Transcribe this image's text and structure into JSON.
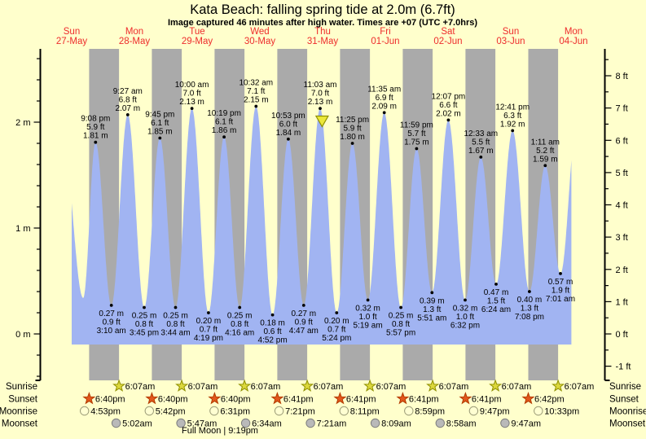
{
  "header": {
    "title": "Kata Beach: falling  spring tide at 2.0m (6.7ft)",
    "subtitle": "Image captured 46 minutes after high water. Times are +07 (UTC +7.0hrs)"
  },
  "days": [
    {
      "name": "Sun",
      "date": "27-May"
    },
    {
      "name": "Mon",
      "date": "28-May"
    },
    {
      "name": "Tue",
      "date": "29-May"
    },
    {
      "name": "Wed",
      "date": "30-May"
    },
    {
      "name": "Thu",
      "date": "31-May"
    },
    {
      "name": "Fri",
      "date": "01-Jun"
    },
    {
      "name": "Sat",
      "date": "02-Jun"
    },
    {
      "name": "Sun",
      "date": "03-Jun"
    },
    {
      "name": "Mon",
      "date": "04-Jun"
    }
  ],
  "chart_data": {
    "type": "area",
    "title": "Kata Beach: falling  spring tide at 2.0m (6.7ft)",
    "y_axis_left": {
      "unit": "m",
      "ticks": [
        {
          "value": 2,
          "label": "2 m"
        },
        {
          "value": 1,
          "label": "1 m"
        },
        {
          "value": 0,
          "label": "0 m"
        }
      ]
    },
    "y_axis_right": {
      "unit": "ft",
      "ticks": [
        {
          "value": 8,
          "label": "8 ft"
        },
        {
          "value": 7,
          "label": "7 ft"
        },
        {
          "value": 6,
          "label": "6 ft"
        },
        {
          "value": 5,
          "label": "5 ft"
        },
        {
          "value": 4,
          "label": "4 ft"
        },
        {
          "value": 3,
          "label": "3 ft"
        },
        {
          "value": 2,
          "label": "2 ft"
        },
        {
          "value": 1,
          "label": "1 ft"
        },
        {
          "value": 0,
          "label": "0 ft"
        },
        {
          "value": -1,
          "label": "-1 ft"
        }
      ]
    },
    "highs": [
      {
        "time": "9:08 pm",
        "ft": "5.9 ft",
        "m": "1.81 m",
        "t_hours": 21.133,
        "level_m": 1.81
      },
      {
        "time": "9:27 am",
        "ft": "6.8 ft",
        "m": "2.07 m",
        "t_hours": 33.45,
        "level_m": 2.07
      },
      {
        "time": "9:45 pm",
        "ft": "6.1 ft",
        "m": "1.85 m",
        "t_hours": 45.75,
        "level_m": 1.85
      },
      {
        "time": "10:00 am",
        "ft": "7.0 ft",
        "m": "2.13 m",
        "t_hours": 58.0,
        "level_m": 2.13
      },
      {
        "time": "10:19 pm",
        "ft": "6.1 ft",
        "m": "1.86 m",
        "t_hours": 70.317,
        "level_m": 1.86
      },
      {
        "time": "10:32 am",
        "ft": "7.1 ft",
        "m": "2.15 m",
        "t_hours": 82.533,
        "level_m": 2.15
      },
      {
        "time": "10:53 pm",
        "ft": "6.0 ft",
        "m": "1.84 m",
        "t_hours": 94.883,
        "level_m": 1.84
      },
      {
        "time": "11:03 am",
        "ft": "7.0 ft",
        "m": "2.13 m",
        "t_hours": 107.05,
        "level_m": 2.13
      },
      {
        "time": "11:25 pm",
        "ft": "5.9 ft",
        "m": "1.80 m",
        "t_hours": 119.417,
        "level_m": 1.8
      },
      {
        "time": "11:35 am",
        "ft": "6.9 ft",
        "m": "2.09 m",
        "t_hours": 131.583,
        "level_m": 2.09
      },
      {
        "time": "11:59 pm",
        "ft": "5.7 ft",
        "m": "1.75 m",
        "t_hours": 143.983,
        "level_m": 1.75
      },
      {
        "time": "12:07 pm",
        "ft": "6.6 ft",
        "m": "2.02 m",
        "t_hours": 156.117,
        "level_m": 2.02
      },
      {
        "time": "12:33 am",
        "ft": "5.5 ft",
        "m": "1.67 m",
        "t_hours": 168.55,
        "level_m": 1.67
      },
      {
        "time": "12:41 pm",
        "ft": "6.3 ft",
        "m": "1.92 m",
        "t_hours": 180.683,
        "level_m": 1.92
      },
      {
        "time": "1:11 am",
        "ft": "5.2 ft",
        "m": "1.59 m",
        "t_hours": 193.183,
        "level_m": 1.59
      }
    ],
    "lows": [
      {
        "m": "0.27 m",
        "ft": "0.9 ft",
        "time": "3:10 am",
        "t_hours": 27.167,
        "level_m": 0.27
      },
      {
        "m": "0.25 m",
        "ft": "0.8 ft",
        "time": "3:45 pm",
        "t_hours": 39.75,
        "level_m": 0.25
      },
      {
        "m": "0.25 m",
        "ft": "0.8 ft",
        "time": "3:44 am",
        "t_hours": 51.733,
        "level_m": 0.25
      },
      {
        "m": "0.20 m",
        "ft": "0.7 ft",
        "time": "4:19 pm",
        "t_hours": 64.317,
        "level_m": 0.2
      },
      {
        "m": "0.25 m",
        "ft": "0.8 ft",
        "time": "4:16 am",
        "t_hours": 76.267,
        "level_m": 0.25
      },
      {
        "m": "0.18 m",
        "ft": "0.6 ft",
        "time": "4:52 pm",
        "t_hours": 88.867,
        "level_m": 0.18
      },
      {
        "m": "0.27 m",
        "ft": "0.9 ft",
        "time": "4:47 am",
        "t_hours": 100.783,
        "level_m": 0.27
      },
      {
        "m": "0.20 m",
        "ft": "0.7 ft",
        "time": "5:24 pm",
        "t_hours": 113.4,
        "level_m": 0.2
      },
      {
        "m": "0.32 m",
        "ft": "1.0 ft",
        "time": "5:19 am",
        "t_hours": 125.317,
        "level_m": 0.32
      },
      {
        "m": "0.25 m",
        "ft": "0.8 ft",
        "time": "5:57 pm",
        "t_hours": 137.95,
        "level_m": 0.25
      },
      {
        "m": "0.39 m",
        "ft": "1.3 ft",
        "time": "5:51 am",
        "t_hours": 149.85,
        "level_m": 0.39
      },
      {
        "m": "0.32 m",
        "ft": "1.0 ft",
        "time": "6:32 pm",
        "t_hours": 162.533,
        "level_m": 0.32
      },
      {
        "m": "0.47 m",
        "ft": "1.5 ft",
        "time": "6:24 am",
        "t_hours": 174.4,
        "level_m": 0.47
      },
      {
        "m": "0.40 m",
        "ft": "1.3 ft",
        "time": "7:08 pm",
        "t_hours": 187.133,
        "level_m": 0.4
      },
      {
        "m": "0.57 m",
        "ft": "1.9 ft",
        "time": "7:01 am",
        "t_hours": 199.017,
        "level_m": 0.57
      }
    ],
    "boundary": {
      "prev_high": {
        "t_hours": 8.8,
        "level_m": 1.78
      },
      "first_low_unlabeled": {
        "t_hours": 16.4,
        "level_m": 0.34
      },
      "next_high": {
        "t_hours": 205.3,
        "level_m": 2.0
      },
      "visible_t_hours": [
        12.0,
        203.2
      ]
    },
    "current_time_marker": {
      "t_hours": 107.82,
      "note": "46 minutes after high water"
    }
  },
  "astro": {
    "rows": [
      {
        "label": "Sunrise",
        "icon": "sunrise-star",
        "entries": [
          {
            "time": "6:07am",
            "t_hours": 30.117
          },
          {
            "time": "6:07am",
            "t_hours": 54.117
          },
          {
            "time": "6:07am",
            "t_hours": 78.117
          },
          {
            "time": "6:07am",
            "t_hours": 102.117
          },
          {
            "time": "6:07am",
            "t_hours": 126.117
          },
          {
            "time": "6:07am",
            "t_hours": 150.117
          },
          {
            "time": "6:07am",
            "t_hours": 174.117
          },
          {
            "time": "6:07am",
            "t_hours": 198.117
          }
        ]
      },
      {
        "label": "Sunset",
        "icon": "sunset-star",
        "entries": [
          {
            "time": "6:40pm",
            "t_hours": 18.667
          },
          {
            "time": "6:40pm",
            "t_hours": 42.667
          },
          {
            "time": "6:40pm",
            "t_hours": 66.667
          },
          {
            "time": "6:41pm",
            "t_hours": 90.683
          },
          {
            "time": "6:41pm",
            "t_hours": 114.683
          },
          {
            "time": "6:41pm",
            "t_hours": 138.683
          },
          {
            "time": "6:41pm",
            "t_hours": 162.683
          },
          {
            "time": "6:42pm",
            "t_hours": 186.7
          }
        ]
      },
      {
        "label": "Moonrise",
        "icon": "moonrise-circle",
        "entries": [
          {
            "time": "4:53pm",
            "t_hours": 16.883
          },
          {
            "time": "5:42pm",
            "t_hours": 41.7
          },
          {
            "time": "6:31pm",
            "t_hours": 66.517
          },
          {
            "time": "7:21pm",
            "t_hours": 91.35
          },
          {
            "time": "8:11pm",
            "t_hours": 116.183
          },
          {
            "time": "8:59pm",
            "t_hours": 140.983
          },
          {
            "time": "9:47pm",
            "t_hours": 165.783
          },
          {
            "time": "10:33pm",
            "t_hours": 190.55
          }
        ]
      },
      {
        "label": "Moonset",
        "icon": "moonset-circle",
        "entries": [
          {
            "time": "5:02am",
            "t_hours": 29.033
          },
          {
            "time": "5:47am",
            "t_hours": 53.783
          },
          {
            "time": "6:34am",
            "t_hours": 78.567
          },
          {
            "time": "7:21am",
            "t_hours": 103.35
          },
          {
            "time": "8:09am",
            "t_hours": 128.15
          },
          {
            "time": "8:58am",
            "t_hours": 152.967
          },
          {
            "time": "9:47am",
            "t_hours": 177.783
          }
        ]
      }
    ],
    "full_moon_label": "Full Moon | 9:19pm"
  },
  "colors": {
    "background": "#ffffcc",
    "daylight_band": "#ffffcc",
    "night_band": "#aaaaaa",
    "water": "#a1b4f2",
    "day_label_red": "#ee2c2c",
    "axis": "#000000",
    "sunrise-star": {
      "fill": "#dcd83c",
      "stroke": "#8f8f00"
    },
    "sunset-star": {
      "fill": "#e2571c",
      "stroke": "#b33b00"
    },
    "moonrise-circle": {
      "fill": "#ffffd2",
      "stroke": "#9b9b77"
    },
    "moonset-circle": {
      "fill": "#b9b9b9",
      "stroke": "#7d7d7d"
    },
    "marker_triangle": {
      "fill": "#ece83a",
      "stroke": "#8f8f00"
    }
  }
}
